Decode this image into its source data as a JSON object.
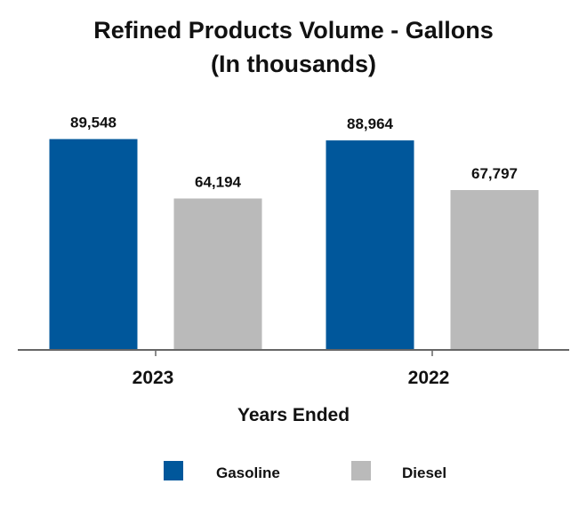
{
  "chart_data": {
    "type": "bar",
    "title": "Refined Products Volume - Gallons",
    "subtitle": "(In thousands)",
    "xlabel": "Years Ended",
    "ylabel": "",
    "categories": [
      "2023",
      "2022"
    ],
    "series": [
      {
        "name": "Gasoline",
        "color": "#00579b",
        "values": [
          89548,
          88964
        ],
        "labels": [
          "89,548",
          "88,964"
        ]
      },
      {
        "name": "Diesel",
        "color": "#bababa",
        "values": [
          64194,
          67797
        ],
        "labels": [
          "64,194",
          "67,797"
        ]
      }
    ],
    "ylim": [
      0,
      100000
    ],
    "grid": false,
    "legend_position": "bottom"
  }
}
